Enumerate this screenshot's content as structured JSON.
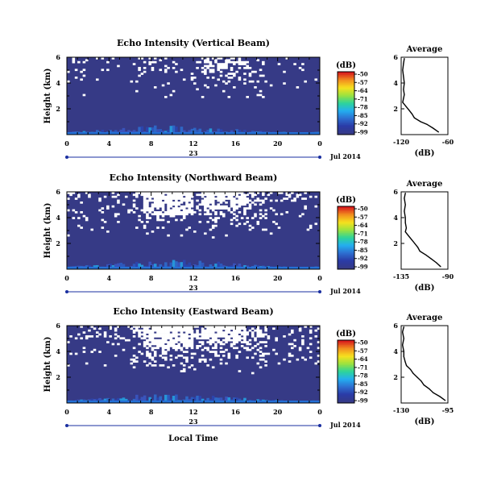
{
  "chart_data": [
    {
      "type": "heatmap",
      "title": "Echo Intensity (Vertical Beam)",
      "ylabel": "Height (km)",
      "x_ticks": [
        "0",
        "4",
        "8",
        "12",
        "16",
        "20",
        "0"
      ],
      "y_ticks": [
        "6",
        "4",
        "2"
      ],
      "x_range": [
        0,
        24
      ],
      "y_range": [
        0,
        6
      ],
      "day_label": "23",
      "date_label": "Jul 2014",
      "colorbar": {
        "title": "(dB)",
        "ticks": [
          "-50",
          "-57",
          "-64",
          "-71",
          "-78",
          "-85",
          "-92",
          "-99"
        ],
        "range": [
          -99,
          -50
        ]
      },
      "profile": {
        "title": "Average",
        "xlabel": "(dB)",
        "x_ticks": [
          "-120",
          "-60"
        ],
        "xlim": [
          -120,
          -60
        ],
        "y_ticks": [
          "6",
          "4",
          "2"
        ],
        "ylim": [
          0,
          6
        ],
        "heights": [
          0.2,
          0.5,
          0.8,
          1.0,
          1.3,
          1.6,
          1.9,
          2.2,
          2.5,
          2.8,
          3.1,
          3.5,
          4.0,
          4.5,
          5.0,
          5.5,
          5.9
        ],
        "values": [
          -72,
          -79,
          -87,
          -95,
          -103,
          -106,
          -110,
          -114,
          -118,
          -117,
          -116,
          -117,
          -116,
          -117,
          -118,
          -117,
          -116
        ]
      }
    },
    {
      "type": "heatmap",
      "title": "Echo Intensity (Northward Beam)",
      "ylabel": "Height (km)",
      "x_ticks": [
        "0",
        "4",
        "8",
        "12",
        "16",
        "20",
        "0"
      ],
      "y_ticks": [
        "6",
        "4",
        "2"
      ],
      "x_range": [
        0,
        24
      ],
      "y_range": [
        0,
        6
      ],
      "day_label": "23",
      "date_label": "Jul 2014",
      "colorbar": {
        "title": "(dB)",
        "ticks": [
          "-50",
          "-57",
          "-64",
          "-71",
          "-78",
          "-85",
          "-92",
          "-99"
        ],
        "range": [
          -99,
          -50
        ]
      },
      "profile": {
        "title": "Average",
        "xlabel": "(dB)",
        "x_ticks": [
          "-135",
          "-90"
        ],
        "xlim": [
          -135,
          -90
        ],
        "y_ticks": [
          "6",
          "4",
          "2"
        ],
        "ylim": [
          0,
          6
        ],
        "heights": [
          0.2,
          0.5,
          0.8,
          1.1,
          1.4,
          1.7,
          2.0,
          2.3,
          2.6,
          2.9,
          3.2,
          3.6,
          4.0,
          4.5,
          5.0,
          5.5,
          5.9
        ],
        "values": [
          -97,
          -101,
          -106,
          -111,
          -117,
          -119,
          -122,
          -125,
          -128,
          -131,
          -130,
          -131,
          -131,
          -132,
          -131,
          -132,
          -131
        ]
      }
    },
    {
      "type": "heatmap",
      "title": "Echo Intensity (Eastward Beam)",
      "ylabel": "Height (km)",
      "xlabel": "Local Time",
      "x_ticks": [
        "0",
        "4",
        "8",
        "12",
        "16",
        "20",
        "0"
      ],
      "y_ticks": [
        "6",
        "4",
        "2"
      ],
      "x_range": [
        0,
        24
      ],
      "y_range": [
        0,
        6
      ],
      "day_label": "23",
      "date_label": "Jul 2014",
      "colorbar": {
        "title": "(dB)",
        "ticks": [
          "-50",
          "-57",
          "-64",
          "-71",
          "-78",
          "-85",
          "-92",
          "-99"
        ],
        "range": [
          -99,
          -50
        ]
      },
      "profile": {
        "title": "Average",
        "xlabel": "(dB)",
        "x_ticks": [
          "-130",
          "-95"
        ],
        "xlim": [
          -130,
          -95
        ],
        "y_ticks": [
          "6",
          "4",
          "2"
        ],
        "ylim": [
          0,
          6
        ],
        "heights": [
          0.2,
          0.5,
          0.8,
          1.1,
          1.4,
          1.7,
          2.0,
          2.3,
          2.6,
          2.9,
          3.2,
          3.6,
          4.0,
          4.5,
          5.0,
          5.5,
          5.9
        ],
        "values": [
          -97,
          -101,
          -106,
          -109,
          -113,
          -115,
          -118,
          -121,
          -123,
          -126,
          -127,
          -128,
          -128,
          -129,
          -128,
          -129,
          -128
        ]
      }
    }
  ]
}
